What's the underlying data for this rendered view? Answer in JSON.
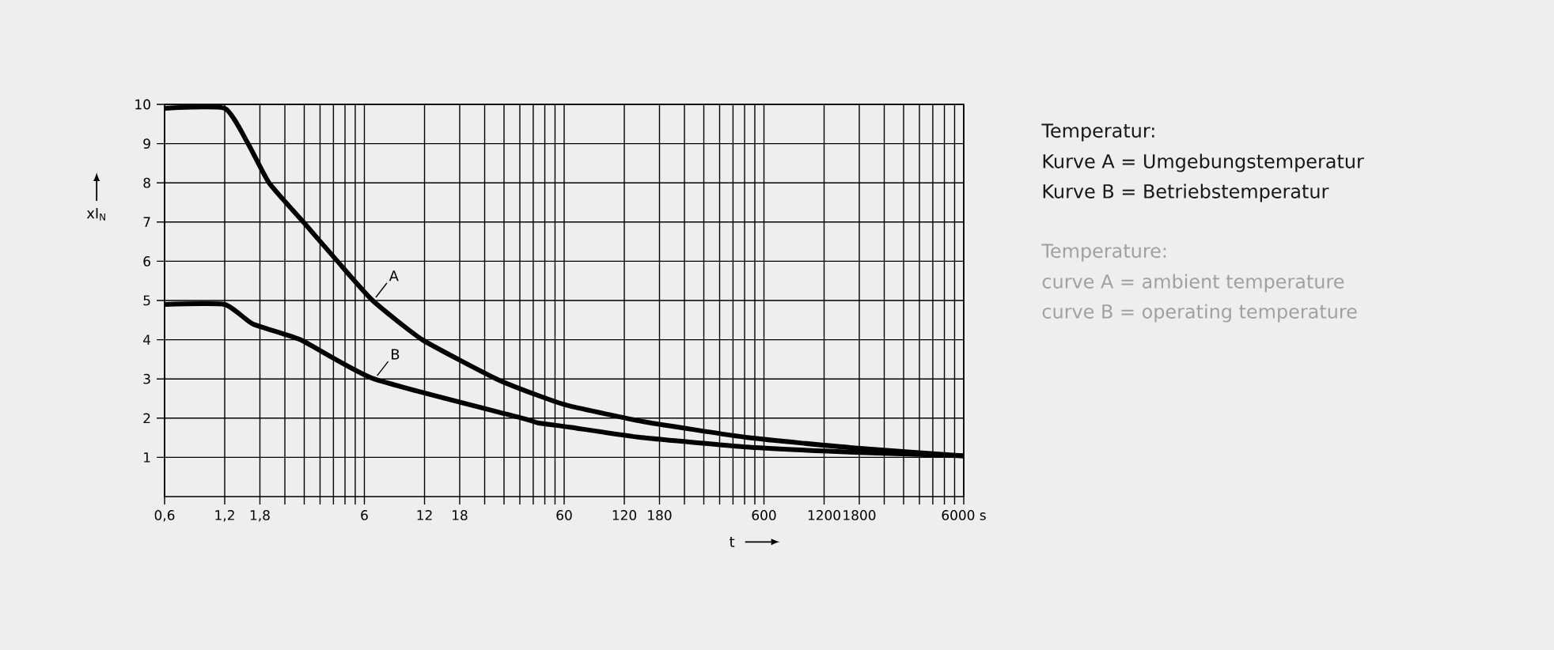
{
  "chart_data": {
    "type": "line",
    "xlabel": "t",
    "ylabel": "xI$_{N}$",
    "log": "x",
    "grid": true,
    "marker": "none",
    "line_style": "solid",
    "xlim": [
      0.6,
      6000
    ],
    "ylim": [
      0,
      10
    ],
    "xticks": [
      {
        "value": 0.6,
        "label": "0,6"
      },
      {
        "value": 1.2,
        "label": "1,2"
      },
      {
        "value": 1.8,
        "label": "1,8"
      },
      {
        "value": 2.4,
        "label": null
      },
      {
        "value": 3,
        "label": null
      },
      {
        "value": 3.6,
        "label": null
      },
      {
        "value": 4.2,
        "label": null
      },
      {
        "value": 4.8,
        "label": null
      },
      {
        "value": 5.4,
        "label": null
      },
      6,
      12,
      18,
      {
        "value": 24,
        "label": null
      },
      {
        "value": 30,
        "label": null
      },
      {
        "value": 36,
        "label": null
      },
      {
        "value": 42,
        "label": null
      },
      {
        "value": 48,
        "label": null
      },
      {
        "value": 54,
        "label": null
      },
      60,
      120,
      180,
      {
        "value": 240,
        "label": null
      },
      {
        "value": 300,
        "label": null
      },
      {
        "value": 360,
        "label": null
      },
      {
        "value": 420,
        "label": null
      },
      {
        "value": 480,
        "label": null
      },
      {
        "value": 540,
        "label": null
      },
      600,
      1200,
      1800,
      {
        "value": 2400,
        "label": null
      },
      {
        "value": 3000,
        "label": null
      },
      {
        "value": 3600,
        "label": null
      },
      {
        "value": 4200,
        "label": null
      },
      {
        "value": 4800,
        "label": null
      },
      {
        "value": 5400,
        "label": null
      },
      {
        "value": 6000,
        "label": "6000 s"
      }
    ],
    "yticks": [
      1,
      2,
      3,
      4,
      5,
      6,
      7,
      8,
      9,
      10
    ],
    "series": [
      {
        "color": "#000000",
        "x": [
          0.6,
          1.2,
          1.57,
          2.0,
          2.97,
          4.4,
          6.6,
          11.7,
          27.5,
          44.3,
          64,
          150,
          506,
          1710,
          6000
        ],
        "values": [
          9.9,
          9.9,
          9,
          8,
          7,
          6,
          5,
          4,
          3,
          2.58,
          2.31,
          1.91,
          1.5,
          1.24,
          1.04
        ]
      },
      {
        "color": "#000000",
        "x": [
          0.6,
          1.2,
          1.66,
          2.87,
          6.7,
          37,
          44.3,
          64,
          150,
          506,
          1710,
          6000
        ],
        "values": [
          4.9,
          4.9,
          4.4,
          4,
          3,
          2,
          1.88,
          1.77,
          1.5,
          1.26,
          1.13,
          1.04
        ]
      }
    ],
    "annotations": [
      {
        "text": "A",
        "x": 6.6,
        "y": 5
      },
      {
        "text": "B",
        "x": 6.7,
        "y": 3
      },
      "Temperatur:",
      "Kurve A = Umgebungstemperatur",
      "Kurve B = Betriebstemperatur",
      "Temperature:",
      "curve A = ambient temperature",
      "curve B = operating temperature"
    ]
  }
}
